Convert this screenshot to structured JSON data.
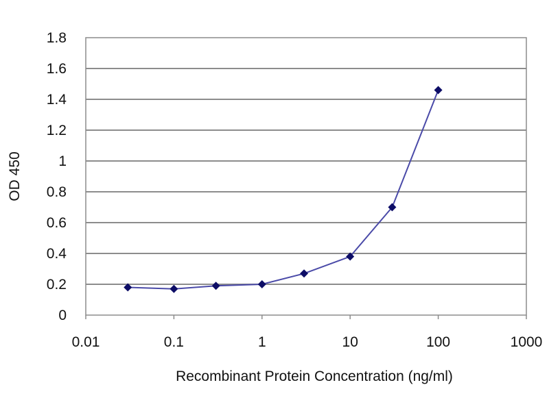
{
  "chart_data": {
    "type": "line",
    "xscale": "log",
    "xlim": [
      0.01,
      1000
    ],
    "ylim": [
      0,
      1.8
    ],
    "grid": "horizontal",
    "legend": "none",
    "xlabel": "Recombinant Protein Concentration (ng/ml)",
    "ylabel": "OD 450",
    "x_ticks": [
      {
        "value": 0.01,
        "label": "0.01"
      },
      {
        "value": 0.1,
        "label": "0.1"
      },
      {
        "value": 1,
        "label": "1"
      },
      {
        "value": 10,
        "label": "10"
      },
      {
        "value": 100,
        "label": "100"
      },
      {
        "value": 1000,
        "label": "1000"
      }
    ],
    "y_ticks": [
      {
        "value": 0,
        "label": "0"
      },
      {
        "value": 0.2,
        "label": "0.2"
      },
      {
        "value": 0.4,
        "label": "0.4"
      },
      {
        "value": 0.6,
        "label": "0.6"
      },
      {
        "value": 0.8,
        "label": "0.8"
      },
      {
        "value": 1,
        "label": "1"
      },
      {
        "value": 1.2,
        "label": "1.2"
      },
      {
        "value": 1.4,
        "label": "1.4"
      },
      {
        "value": 1.6,
        "label": "1.6"
      },
      {
        "value": 1.8,
        "label": "1.8"
      }
    ],
    "series": [
      {
        "points": [
          {
            "x": 0.03,
            "y": 0.18
          },
          {
            "x": 0.1,
            "y": 0.17
          },
          {
            "x": 0.3,
            "y": 0.19
          },
          {
            "x": 1,
            "y": 0.2
          },
          {
            "x": 3,
            "y": 0.27
          },
          {
            "x": 10,
            "y": 0.38
          },
          {
            "x": 30,
            "y": 0.7
          },
          {
            "x": 100,
            "y": 1.46
          }
        ]
      }
    ],
    "colors": {
      "line": "#4a4aa8",
      "marker": "#0d0d66",
      "grid": "#8c8c8c",
      "frame": "#8c8c8c"
    }
  }
}
